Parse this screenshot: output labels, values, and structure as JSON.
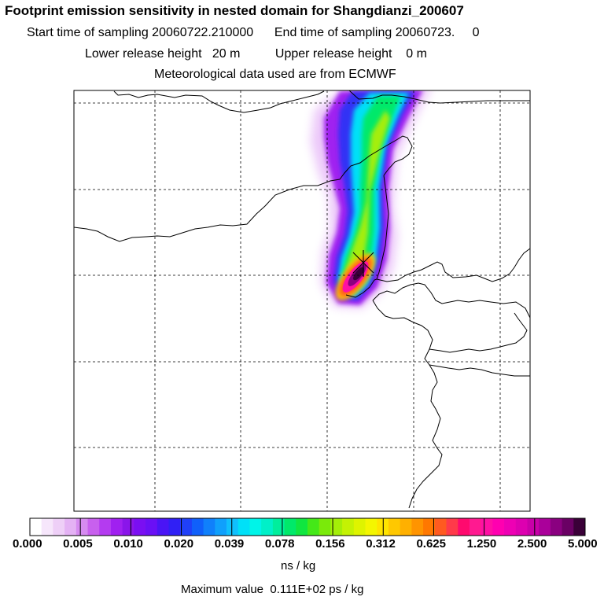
{
  "header": {
    "title": "Footprint emission sensitivity in nested domain for Shangdianzi_200607",
    "start_label": "Start time of sampling 20060722.210000",
    "end_label": "End time of sampling 20060723.     0",
    "lower_release": "Lower release height   20 m",
    "upper_release": "Upper release height    0 m",
    "met_data": "Meteorological data used are from ECMWF"
  },
  "colorbar": {
    "tick_labels": [
      "0.000",
      "0.005",
      "0.010",
      "0.020",
      "0.039",
      "0.078",
      "0.156",
      "0.312",
      "0.625",
      "1.250",
      "2.500",
      "5.000"
    ],
    "colors": [
      "#ffffff",
      "#f6e6fb",
      "#eecff7",
      "#e4b2f4",
      "#d68bf0",
      "#c860ee",
      "#b43bf0",
      "#a020f0",
      "#8a15ea",
      "#7a0ff2",
      "#6a10f5",
      "#4a15f5",
      "#3020f5",
      "#2040f8",
      "#1060fa",
      "#1080fb",
      "#10a0fc",
      "#10c0fd",
      "#00e0f8",
      "#00f4e8",
      "#00f0c8",
      "#00ee9c",
      "#00e96a",
      "#10e640",
      "#44e818",
      "#7aea0a",
      "#a4ee08",
      "#c4f204",
      "#def400",
      "#f4f600",
      "#ffe400",
      "#ffc800",
      "#ffb000",
      "#ff9400",
      "#ff7800",
      "#ff5a20",
      "#ff3a4a",
      "#ff0a6e",
      "#ff1a90",
      "#ff10a4",
      "#ff00b0",
      "#ee00b4",
      "#dd00b0",
      "#c800a8",
      "#aa009a",
      "#8a0080",
      "#6a0064",
      "#3a0038"
    ],
    "units": "ns / kg",
    "max_value": "Maximum value  0.111E+02 ps / kg"
  },
  "map": {
    "station": "Shangdianzi",
    "plume_colors": [
      "#a020f0",
      "#c860ee",
      "#3030f5",
      "#00e0f8",
      "#00e96a",
      "#a4ee08",
      "#ffc800",
      "#ff5a20",
      "#ff10a4",
      "#8a0080",
      "#3a0038"
    ]
  }
}
